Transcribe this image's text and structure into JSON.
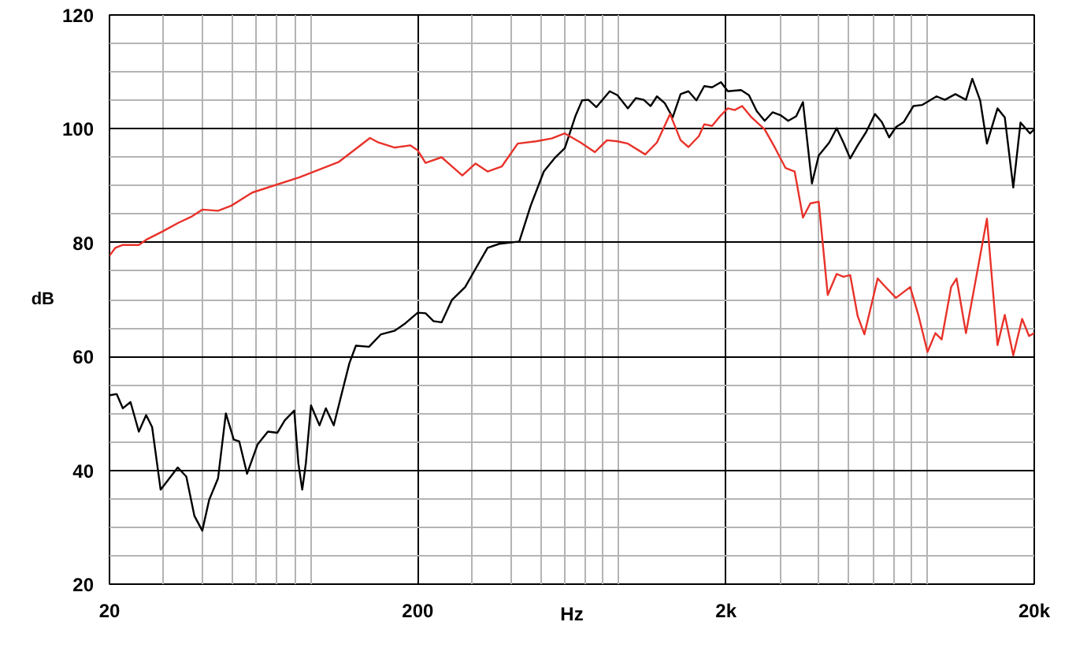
{
  "chart_data": {
    "type": "line",
    "xlabel": "Hz",
    "ylabel": "dB",
    "log": "x",
    "grid": true,
    "marker": "none",
    "line_style": "solid",
    "xlim": [
      20,
      20000
    ],
    "ylim": [
      20,
      120
    ],
    "xticks": [
      20,
      200,
      {
        "value": 2000,
        "label": "2k"
      },
      {
        "value": 20000,
        "label": "20k"
      }
    ],
    "yticks": [
      20,
      40,
      60,
      80,
      100,
      120
    ],
    "series": [
      {
        "color": "#000000",
        "x": [
          20.1,
          21.1,
          22.1,
          23.4,
          24.9,
          26.3,
          27.5,
          29.3,
          33.3,
          35.5,
          37.7,
          40,
          42.1,
          45,
          47.7,
          50.6,
          52.7,
          55.9,
          60.4,
          65.3,
          70.1,
          74.1,
          79.5,
          82,
          84.4,
          86.7,
          90.1,
          96,
          100.7,
          106.8,
          113,
          120,
          126,
          139,
          152,
          168,
          181,
          200,
          212,
          225,
          239,
          258,
          285,
          308,
          337,
          368,
          427,
          465,
          513,
          555,
          600,
          649,
          683,
          716,
          759,
          839,
          889,
          961,
          1020,
          1082,
          1139,
          1194,
          1266,
          1343,
          1425,
          1511,
          1603,
          1700,
          1803,
          1926,
          2028,
          2238,
          2374,
          2517,
          2670,
          2832,
          3004,
          3184,
          3378,
          3554,
          3800,
          3998,
          4326,
          4571,
          4808,
          5058,
          5348,
          5692,
          6086,
          6404,
          6766,
          7118,
          7551,
          8106,
          8670,
          9638,
          10258,
          11098,
          12008,
          12590,
          13352,
          14046,
          15202,
          16048,
          17100,
          18052,
          19374,
          20000
        ],
        "values": [
          53.2,
          53.4,
          50.9,
          52.0,
          46.8,
          49.7,
          47.6,
          36.6,
          40.5,
          38.9,
          32.0,
          29.4,
          34.8,
          38.6,
          50.0,
          45.4,
          45.1,
          39.4,
          44.5,
          46.8,
          46.6,
          48.8,
          50.5,
          41.2,
          36.6,
          41.2,
          51.4,
          47.9,
          50.9,
          47.9,
          53.2,
          58.8,
          61.9,
          61.7,
          63.9,
          64.5,
          65.7,
          67.7,
          67.6,
          66.2,
          66.0,
          69.9,
          72.2,
          75.4,
          79.1,
          79.8,
          80.2,
          86.5,
          92.5,
          94.8,
          96.6,
          102.2,
          105.0,
          105.1,
          103.8,
          106.6,
          105.9,
          103.6,
          105.4,
          105.1,
          104.0,
          105.7,
          104.5,
          102.0,
          106.1,
          106.6,
          105.0,
          107.5,
          107.3,
          108.2,
          106.6,
          106.8,
          105.9,
          103.1,
          101.4,
          102.9,
          102.4,
          101.4,
          102.2,
          104.7,
          90.4,
          95.3,
          97.6,
          100.1,
          97.6,
          94.8,
          97.1,
          99.4,
          102.6,
          101.2,
          98.5,
          100.3,
          101.2,
          104.0,
          104.2,
          105.7,
          105.1,
          106.1,
          105.1,
          108.8,
          105.0,
          97.4,
          103.6,
          102.0,
          89.7,
          101.1,
          99.2,
          99.9
        ]
      },
      {
        "color": "#e8322a",
        "x": [
          20,
          20.9,
          22.1,
          24.9,
          26.3,
          29.8,
          33.5,
          37,
          40,
          45,
          49.7,
          58.1,
          82.7,
          111,
          140,
          149,
          168,
          189,
          200,
          212,
          239,
          252,
          279,
          308,
          337,
          375,
          422,
          484,
          544,
          600,
          675,
          751,
          822,
          889,
          961,
          1094,
          1194,
          1317,
          1425,
          1511,
          1633,
          1700,
          1803,
          1912,
          2028,
          2134,
          2256,
          2421,
          2670,
          2888,
          3122,
          3340,
          3554,
          3756,
          3998,
          4276,
          4571,
          4808,
          5058,
          5348,
          5624,
          6210,
          6666,
          7118,
          7916,
          8434,
          9010,
          9558,
          10016,
          10750,
          11192,
          12008,
          14046,
          15202,
          16048,
          17100,
          18266,
          19236,
          20000
        ],
        "values": [
          77.7,
          79.1,
          79.6,
          79.6,
          80.5,
          82.0,
          83.5,
          84.6,
          85.8,
          85.6,
          86.5,
          88.8,
          91.5,
          94.2,
          98.4,
          97.6,
          96.7,
          97.1,
          96.2,
          94.0,
          95.0,
          93.9,
          91.8,
          93.9,
          92.5,
          93.4,
          97.4,
          97.8,
          98.3,
          99.2,
          97.6,
          95.9,
          98.0,
          97.8,
          97.4,
          95.5,
          97.6,
          102.6,
          98.0,
          96.8,
          98.7,
          100.8,
          100.5,
          102.2,
          103.6,
          103.3,
          104.0,
          102.0,
          99.9,
          96.6,
          93.1,
          92.5,
          84.4,
          86.9,
          87.2,
          70.8,
          74.5,
          74.0,
          74.3,
          67.1,
          63.9,
          73.7,
          71.9,
          70.3,
          72.2,
          67.1,
          60.8,
          64.1,
          63.0,
          72.2,
          73.7,
          64.1,
          84.2,
          62.0,
          67.3,
          60.2,
          66.6,
          63.6,
          64.1
        ]
      }
    ]
  }
}
